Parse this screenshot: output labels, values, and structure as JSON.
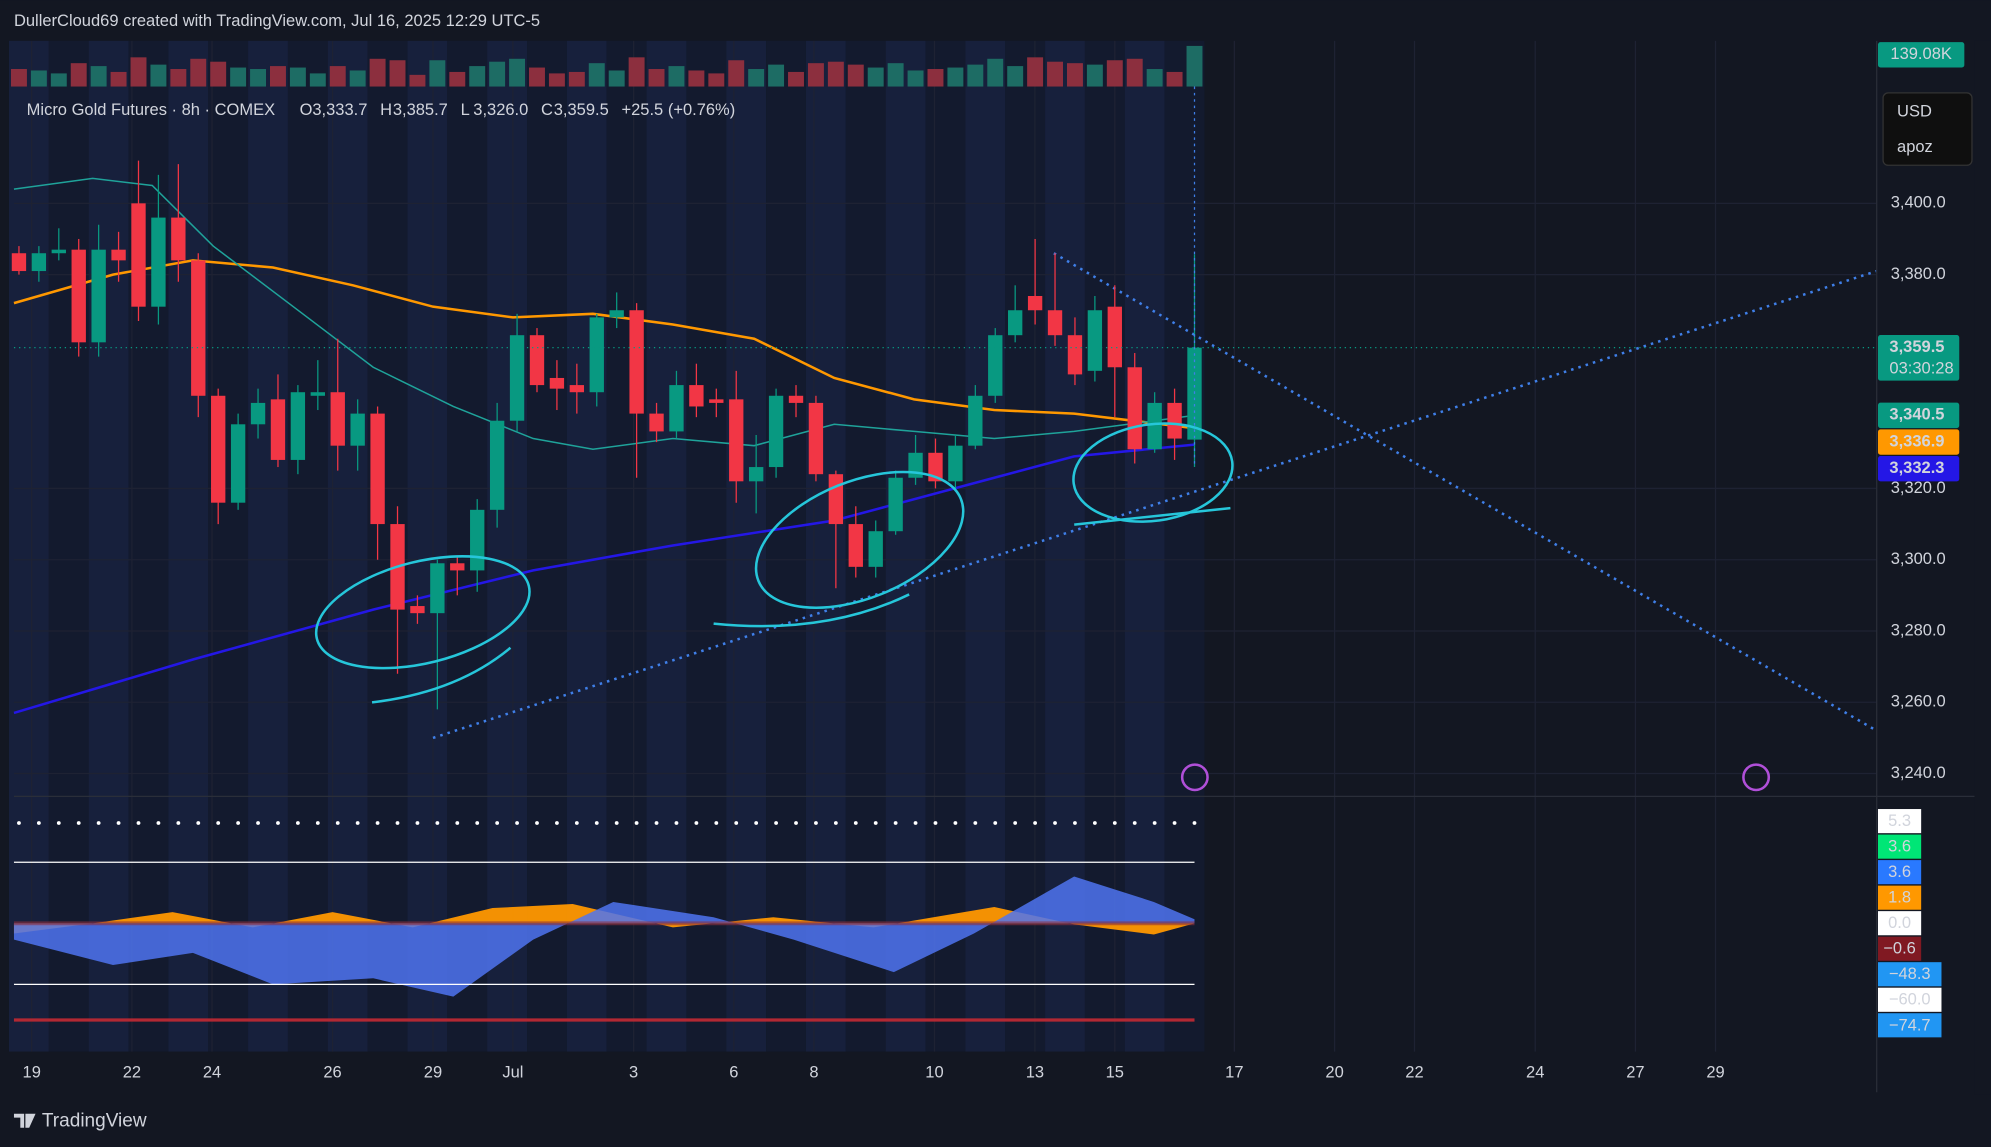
{
  "header": {
    "attribution": "DullerCloud69 created with TradingView.com, Jul 16, 2025 12:29 UTC-5",
    "symbol": "Micro Gold Futures · 8h · COMEX",
    "ohlc": [
      {
        "key": "O",
        "label": "3,333.7"
      },
      {
        "key": "H",
        "label": "3,385.7"
      },
      {
        "key": "L",
        "label": "3,326.0"
      },
      {
        "key": "C",
        "label": "3,359.5"
      }
    ],
    "change": "+25.5 (+0.76%)",
    "currency": "USD",
    "user": "apoz",
    "brand": "TradingView"
  },
  "chart_data": {
    "type": "candlestick",
    "open": [
      3386,
      3381,
      3386,
      3387,
      3361,
      3387,
      3400,
      3371,
      3396,
      3384,
      3346,
      3316,
      3338,
      3345,
      3328,
      3346,
      3347,
      3332,
      3341,
      3310,
      3287,
      3285,
      3299,
      3297,
      3314,
      3339,
      3363,
      3351,
      3349,
      3347,
      3368,
      3370,
      3341,
      3336,
      3349,
      3345,
      3345,
      3322,
      3326,
      3346,
      3344,
      3324,
      3310,
      3298,
      3308,
      3323,
      3330,
      3322,
      3332,
      3346,
      3363,
      3374,
      3370,
      3363,
      3353,
      3371,
      3354,
      3331,
      3344,
      3333.7
    ],
    "high": [
      3388,
      3388,
      3393,
      3390,
      3394,
      3392,
      3412,
      3408,
      3411,
      3386,
      3348,
      3341,
      3348,
      3352,
      3349,
      3356,
      3362,
      3345,
      3343,
      3315,
      3290,
      3300,
      3301,
      3317,
      3344,
      3369,
      3365,
      3356,
      3355,
      3369,
      3375,
      3372,
      3344,
      3353,
      3355,
      3348,
      3353,
      3335,
      3348,
      3349,
      3346,
      3325,
      3315,
      3311,
      3325,
      3335,
      3334,
      3335,
      3349,
      3365,
      3377,
      3390,
      3386,
      3368,
      3374,
      3377,
      3358,
      3347,
      3348,
      3385.7
    ],
    "low": [
      3380,
      3378,
      3384,
      3357,
      3357,
      3378,
      3367,
      3366,
      3378,
      3340,
      3310,
      3314,
      3334,
      3326,
      3324,
      3342,
      3325,
      3325,
      3300,
      3268,
      3282,
      3258,
      3290,
      3291,
      3309,
      3336,
      3347,
      3342,
      3341,
      3343,
      3365,
      3323,
      3333,
      3334,
      3340,
      3340,
      3316,
      3313,
      3323,
      3340,
      3322,
      3292,
      3295,
      3295,
      3307,
      3321,
      3320,
      3320,
      3331,
      3344,
      3361,
      3366,
      3360,
      3349,
      3350,
      3340,
      3327,
      3330,
      3328,
      3326.0
    ],
    "close": [
      3381,
      3386,
      3387,
      3361,
      3387,
      3384,
      3371,
      3396,
      3384,
      3346,
      3316,
      3338,
      3344,
      3328,
      3347,
      3347,
      3332,
      3341,
      3310,
      3286,
      3285,
      3299,
      3297,
      3314,
      3339,
      3363,
      3349,
      3348,
      3347,
      3368,
      3370,
      3341,
      3336,
      3349,
      3343,
      3344,
      3322,
      3326,
      3346,
      3344,
      3324,
      3310,
      3298,
      3308,
      3323,
      3330,
      3322,
      3332,
      3346,
      3363,
      3370,
      3370,
      3363,
      3352,
      3370,
      3354,
      3331,
      3344,
      3334,
      3359.5
    ],
    "up_color": "#089981",
    "down_color": "#f23645",
    "volume": [
      60,
      55,
      45,
      80,
      70,
      50,
      100,
      75,
      60,
      95,
      85,
      65,
      60,
      70,
      65,
      45,
      70,
      55,
      95,
      90,
      40,
      90,
      50,
      70,
      85,
      95,
      65,
      45,
      50,
      80,
      55,
      100,
      60,
      70,
      55,
      45,
      90,
      60,
      75,
      50,
      80,
      85,
      75,
      65,
      80,
      55,
      60,
      65,
      75,
      95,
      70,
      100,
      85,
      80,
      75,
      90,
      95,
      60,
      50,
      139.08
    ],
    "volume_label": "139.08K",
    "volume_ylim": [
      0,
      139.08
    ],
    "lines": [
      {
        "color": "#ff9800",
        "x": [
          -0.25,
          4.72,
          8.73,
          12.75,
          16.76,
          20.78,
          24.79,
          28.81,
          32.82,
          36.9,
          40.92,
          44.93,
          48.95,
          52.96,
          59
        ],
        "values": [
          3372,
          3380,
          3384,
          3382,
          3377,
          3371,
          3368,
          3369,
          3366,
          3362,
          3351,
          3345,
          3342,
          3341,
          3336.9
        ]
      },
      {
        "color": "#1fa39a",
        "x": [
          -0.25,
          3.7,
          6.69,
          9.75,
          13.77,
          17.78,
          21.8,
          25.81,
          28.81,
          32.82,
          36.9,
          40.92,
          44.93,
          48.95,
          52.96,
          59
        ],
        "values": [
          3404,
          3407,
          3405,
          3388,
          3371,
          3354,
          3343,
          3334,
          3331,
          3334,
          3332,
          3338,
          3336,
          3334,
          3336,
          3340.5
        ]
      },
      {
        "color": "#2417e6",
        "x": [
          -0.25,
          8.73,
          17.78,
          25.81,
          32.82,
          40.92,
          48.95,
          52.96,
          59
        ],
        "values": [
          3257,
          3272,
          3286,
          3297,
          3304,
          3311,
          3323,
          3329,
          3332.3
        ]
      }
    ],
    "trendlines": [
      {
        "x": [
          20.78,
          93.24
        ],
        "values": [
          3250,
          3381
        ]
      },
      {
        "x": [
          51.94,
          93.24
        ],
        "values": [
          3386,
          3252
        ]
      }
    ],
    "price_labels": [
      {
        "value": 3359.5,
        "label": "3,359.5",
        "sub": "03:30:28",
        "color": "#089981"
      },
      {
        "value": 3340.5,
        "label": "3,340.5",
        "color": "#089981"
      },
      {
        "value": 3336.9,
        "label": "3,336.9",
        "color": "#ff9800"
      },
      {
        "value": 3332.3,
        "label": "3,332.3",
        "color": "#2417e6"
      }
    ],
    "ylim": [
      3233.6,
      3445.6
    ],
    "yticks": [
      {
        "value": 3240,
        "label": "3,240.0"
      },
      {
        "value": 3260,
        "label": "3,260.0"
      },
      {
        "value": 3280,
        "label": "3,280.0"
      },
      {
        "value": 3300,
        "label": "3,300.0"
      },
      {
        "value": 3320,
        "label": "3,320.0"
      },
      {
        "value": 3380,
        "label": "3,380.0"
      },
      {
        "value": 3400,
        "label": "3,400.0"
      }
    ],
    "xlim": [
      -0.25,
      93.24
    ],
    "xticks": [
      {
        "value": 0.64,
        "label": "19"
      },
      {
        "value": 5.67,
        "label": "22"
      },
      {
        "value": 9.69,
        "label": "24"
      },
      {
        "value": 15.74,
        "label": "26"
      },
      {
        "value": 20.78,
        "label": "29"
      },
      {
        "value": 24.79,
        "label": "Jul"
      },
      {
        "value": 30.85,
        "label": "3"
      },
      {
        "value": 35.88,
        "label": "6"
      },
      {
        "value": 39.9,
        "label": "8"
      },
      {
        "value": 45.95,
        "label": "10"
      },
      {
        "value": 50.99,
        "label": "13"
      },
      {
        "value": 55,
        "label": "15"
      },
      {
        "value": 61,
        "label": "17"
      },
      {
        "value": 66.03,
        "label": "20"
      },
      {
        "value": 70.04,
        "label": "22"
      },
      {
        "value": 76.1,
        "label": "24"
      },
      {
        "value": 81.13,
        "label": "27"
      },
      {
        "value": 85.15,
        "label": "29"
      }
    ],
    "oscillator": {
      "ylim": [
        -126,
        121
      ],
      "levels": [
        {
          "value": 60,
          "color": "#ffffff"
        },
        {
          "value": -60,
          "color": "#ffffff"
        },
        {
          "value": -95,
          "color": "#b22833"
        }
      ],
      "areas": [
        {
          "color": "#ff9800",
          "x": [
            -0.25,
            3.7,
            7.71,
            11.73,
            15.74,
            19.76,
            23.77,
            27.79,
            32.82,
            37.86,
            42.89,
            48.95,
            52.96,
            56.96,
            59
          ],
          "values": [
            -10,
            0,
            11,
            -4,
            11,
            -4,
            15,
            19,
            -4,
            6,
            -4,
            16,
            -1,
            -11,
            0
          ]
        },
        {
          "color": "#4f74f0",
          "x": [
            -0.25,
            4.72,
            8.73,
            12.75,
            17.78,
            21.8,
            25.81,
            29.83,
            34.86,
            38.88,
            43.91,
            47.93,
            52.96,
            56.96,
            59
          ],
          "values": [
            -16,
            -41,
            -29,
            -60,
            -54,
            -72,
            -16,
            21,
            6,
            -16,
            -48,
            -10,
            46,
            21,
            4
          ]
        }
      ],
      "labels": [
        {
          "value": 5.3,
          "label": "5.3",
          "bg": "#ffffff",
          "fg": "#000000"
        },
        {
          "value": 3.6,
          "label": "3.6",
          "bg": "#00e676",
          "fg": "#000000"
        },
        {
          "value": 3.6,
          "label": "3.6",
          "bg": "#2979ff",
          "fg": "#ffffff"
        },
        {
          "value": 1.8,
          "label": "1.8",
          "bg": "#ff9800",
          "fg": "#000000"
        },
        {
          "value": 0,
          "label": "0.0",
          "bg": "#ffffff",
          "fg": "#000000"
        },
        {
          "value": -0.6,
          "label": "−0.6",
          "bg": "#801922",
          "fg": "#ffffff"
        },
        {
          "value": -48.3,
          "label": "−48.3",
          "bg": "#2196f3",
          "fg": "#ffffff"
        },
        {
          "value": -60,
          "label": "−60.0",
          "bg": "#ffffff",
          "fg": "#000000"
        },
        {
          "value": -74.7,
          "label": "−74.7",
          "bg": "#2196f3",
          "fg": "#ffffff"
        }
      ]
    }
  }
}
